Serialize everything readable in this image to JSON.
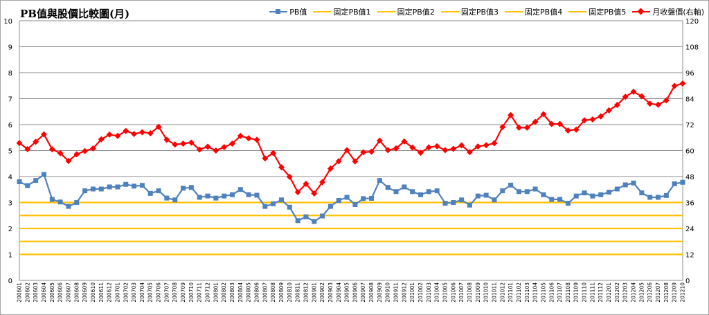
{
  "chart_data": {
    "type": "line",
    "title": "PB值與股價比較圖(月)",
    "categories": [
      "200601",
      "200602",
      "200603",
      "200604",
      "200605",
      "200606",
      "200607",
      "200608",
      "200609",
      "200610",
      "200611",
      "200612",
      "200701",
      "200702",
      "200703",
      "200704",
      "200705",
      "200706",
      "200707",
      "200708",
      "200709",
      "200710",
      "200711",
      "200712",
      "200801",
      "200802",
      "200803",
      "200804",
      "200805",
      "200806",
      "200807",
      "200808",
      "200809",
      "200810",
      "200811",
      "200812",
      "200901",
      "200902",
      "200903",
      "200904",
      "200905",
      "200906",
      "200907",
      "200908",
      "200909",
      "200910",
      "200911",
      "200912",
      "201001",
      "201002",
      "201003",
      "201004",
      "201005",
      "201006",
      "201007",
      "201008",
      "201009",
      "201010",
      "201011",
      "201012",
      "201101",
      "201102",
      "201103",
      "201104",
      "201105",
      "201106",
      "201107",
      "201108",
      "201109",
      "201110",
      "201111",
      "201112",
      "201201",
      "201202",
      "201203",
      "201204",
      "201205",
      "201206",
      "201207",
      "201208",
      "201209",
      "201210"
    ],
    "y_left": {
      "min": 0,
      "max": 10,
      "ticks": [
        "0",
        "1",
        "2",
        "3",
        "4",
        "5",
        "6",
        "7",
        "8",
        "9",
        "10"
      ]
    },
    "y_right": {
      "min": 0,
      "max": 120,
      "ticks": [
        "0",
        "12",
        "24",
        "36",
        "48",
        "60",
        "72",
        "84",
        "96",
        "108",
        "120"
      ]
    },
    "grid": true,
    "legend_position": "top-right",
    "series": [
      {
        "name": "PB值",
        "axis": "left",
        "color": "#4f81bd",
        "marker": "square",
        "values": [
          3.8,
          3.65,
          3.85,
          4.08,
          3.12,
          3.02,
          2.85,
          3.0,
          3.45,
          3.52,
          3.52,
          3.6,
          3.6,
          3.7,
          3.63,
          3.66,
          3.35,
          3.45,
          3.17,
          3.1,
          3.55,
          3.58,
          3.2,
          3.25,
          3.17,
          3.25,
          3.3,
          3.5,
          3.3,
          3.28,
          2.85,
          2.95,
          3.1,
          2.82,
          2.3,
          2.45,
          2.27,
          2.48,
          2.85,
          3.08,
          3.2,
          2.92,
          3.15,
          3.16,
          3.85,
          3.58,
          3.42,
          3.6,
          3.42,
          3.3,
          3.42,
          3.45,
          2.97,
          3.0,
          3.1,
          2.9,
          3.25,
          3.28,
          3.1,
          3.45,
          3.67,
          3.42,
          3.42,
          3.52,
          3.3,
          3.12,
          3.12,
          2.97,
          3.25,
          3.37,
          3.25,
          3.3,
          3.4,
          3.52,
          3.68,
          3.75,
          3.37,
          3.2,
          3.2,
          3.27,
          3.72,
          3.78
        ]
      },
      {
        "name": "固定PB值1",
        "axis": "left",
        "color": "#ffc000",
        "constant": 1.0
      },
      {
        "name": "固定PB值2",
        "axis": "left",
        "color": "#ffc000",
        "constant": 1.5
      },
      {
        "name": "固定PB值3",
        "axis": "left",
        "color": "#ffc000",
        "constant": 2.0
      },
      {
        "name": "固定PB值4",
        "axis": "left",
        "color": "#ffc000",
        "constant": 2.5
      },
      {
        "name": "固定PB值5",
        "axis": "left",
        "color": "#ffc000",
        "constant": 3.0
      },
      {
        "name": "月收盤價(右軸)",
        "axis": "right",
        "color": "#ff0000",
        "marker": "diamond",
        "values": [
          63.5,
          60.7,
          64.1,
          67.5,
          60.6,
          58.8,
          55.2,
          58.3,
          59.8,
          61.0,
          65.2,
          67.4,
          66.8,
          69.1,
          67.7,
          68.5,
          68.0,
          71.0,
          65.0,
          62.8,
          63.2,
          63.7,
          60.5,
          61.8,
          60.0,
          61.6,
          63.2,
          66.8,
          65.7,
          65.0,
          56.4,
          58.9,
          52.3,
          47.9,
          40.8,
          44.6,
          40.2,
          45.4,
          51.7,
          55.1,
          60.2,
          55.0,
          59.2,
          59.5,
          64.6,
          60.2,
          61.0,
          64.2,
          61.4,
          59.0,
          61.5,
          62.0,
          60.2,
          60.8,
          62.4,
          59.3,
          61.9,
          62.5,
          63.4,
          70.9,
          76.4,
          70.6,
          70.6,
          73.3,
          76.8,
          72.3,
          72.3,
          69.3,
          69.7,
          74.0,
          74.4,
          75.8,
          78.6,
          81.1,
          84.9,
          87.2,
          85.1,
          81.7,
          81.2,
          83.2,
          89.9,
          91.0
        ]
      }
    ]
  }
}
